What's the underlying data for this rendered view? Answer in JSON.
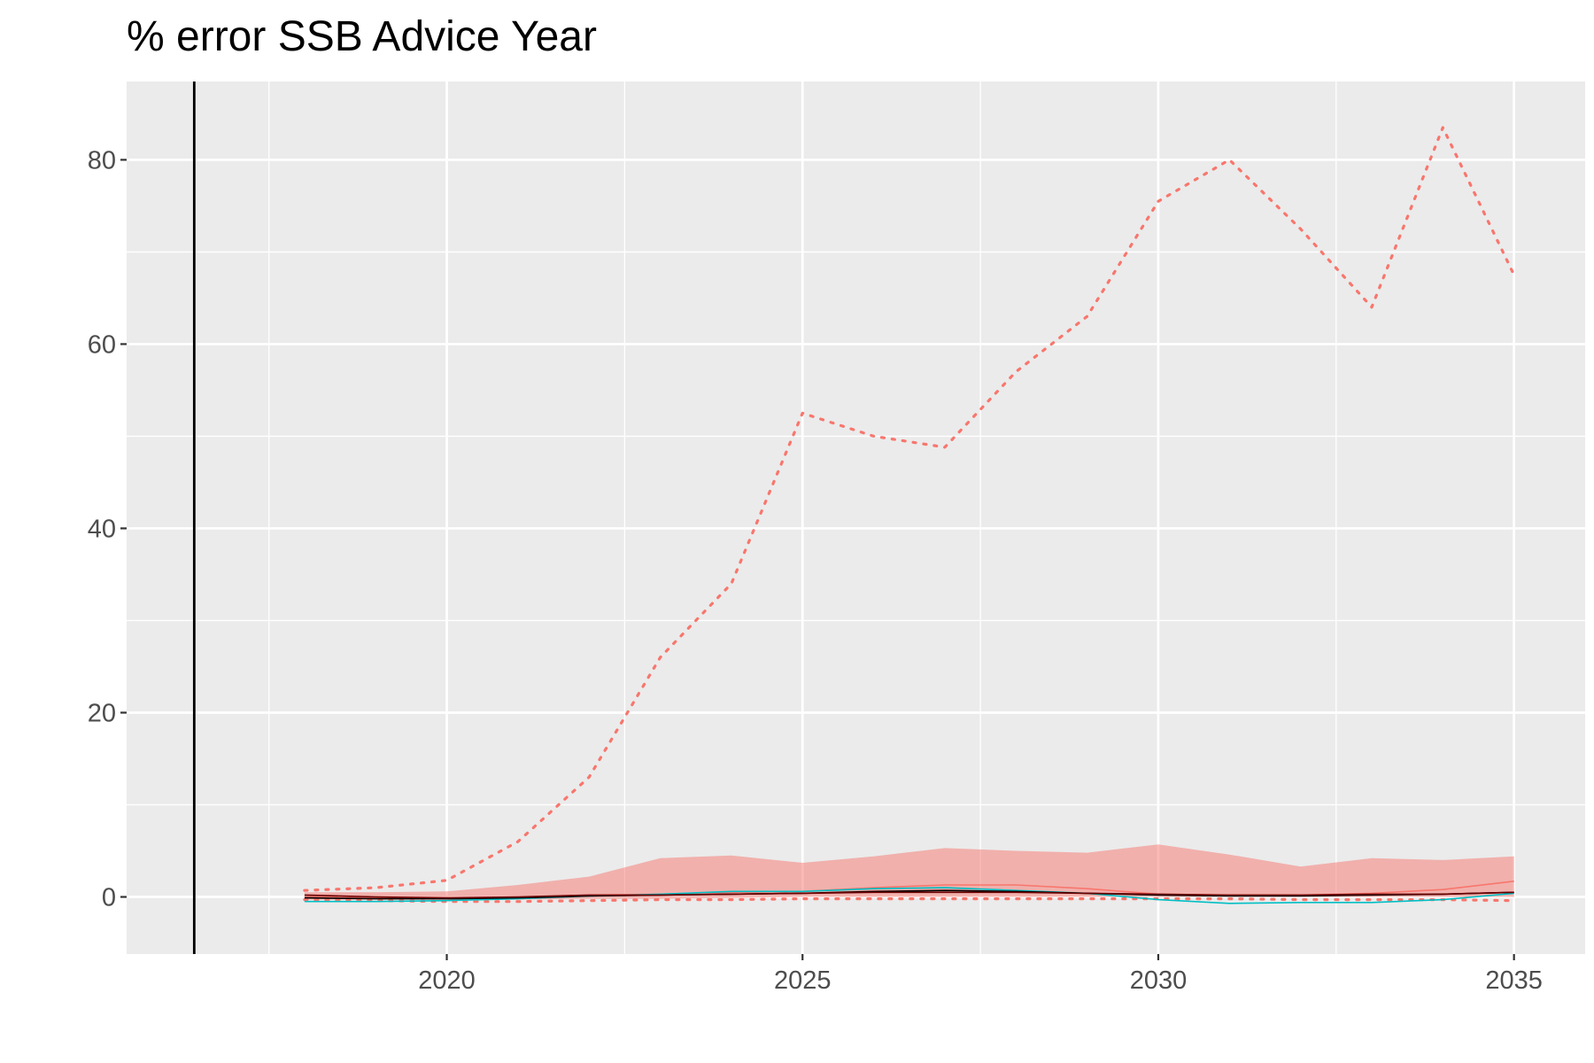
{
  "chart_data": {
    "type": "line",
    "title": "% error SSB Advice Year",
    "xlabel": "",
    "ylabel": "",
    "xlim": [
      2015.5,
      2036.0
    ],
    "ylim": [
      -6.2,
      88.5
    ],
    "x_ticks": [
      2020,
      2025,
      2030,
      2035
    ],
    "x_tick_labels": [
      "2020",
      "2025",
      "2030",
      "2035"
    ],
    "y_ticks": [
      0,
      20,
      40,
      60,
      80
    ],
    "y_tick_labels": [
      "0",
      "20",
      "40",
      "60",
      "80"
    ],
    "background": "#ebebeb",
    "grid": true,
    "legend": "none",
    "vertical_reference_line": {
      "x": 2016.45,
      "color": "#000000"
    },
    "x": [
      2018,
      2019,
      2020,
      2021,
      2022,
      2023,
      2024,
      2025,
      2026,
      2027,
      2028,
      2029,
      2030,
      2031,
      2032,
      2033,
      2034,
      2035
    ],
    "band": {
      "color": "#f8766d",
      "opacity": 0.5,
      "lower": [
        -0.3,
        -0.3,
        -0.3,
        -0.3,
        -0.2,
        -0.2,
        -0.1,
        0.0,
        0.0,
        0.0,
        0.0,
        0.0,
        0.0,
        0.0,
        0.0,
        0.0,
        0.0,
        0.0
      ],
      "upper": [
        0.5,
        0.5,
        0.6,
        1.3,
        2.2,
        4.2,
        4.5,
        3.7,
        4.4,
        5.3,
        5.0,
        4.8,
        5.7,
        4.6,
        3.3,
        4.2,
        4.0,
        4.4
      ]
    },
    "series": [
      {
        "color": "#f8766d",
        "style": "dotted",
        "values": [
          0.7,
          1.0,
          1.8,
          6.0,
          13.0,
          26.0,
          34.0,
          52.5,
          50.0,
          48.8,
          57.0,
          63.0,
          75.5,
          80.0,
          72.5,
          64.0,
          83.5,
          67.5
        ]
      },
      {
        "color": "#f8766d",
        "style": "dotted",
        "values": [
          -0.3,
          -0.4,
          -0.5,
          -0.5,
          -0.4,
          -0.3,
          -0.3,
          -0.2,
          -0.2,
          -0.2,
          -0.2,
          -0.2,
          -0.2,
          -0.2,
          -0.3,
          -0.3,
          -0.3,
          -0.4
        ]
      },
      {
        "color": "#f8766d",
        "style": "solid",
        "values": [
          0.0,
          -0.1,
          -0.2,
          -0.1,
          0.2,
          0.3,
          0.5,
          0.6,
          1.0,
          1.3,
          1.3,
          0.9,
          0.3,
          0.2,
          0.2,
          0.4,
          0.8,
          1.7
        ]
      },
      {
        "color": "#00bfc4",
        "style": "solid",
        "values": [
          -0.5,
          -0.5,
          -0.4,
          -0.2,
          0.1,
          0.3,
          0.6,
          0.6,
          0.9,
          1.0,
          0.7,
          0.4,
          -0.3,
          -0.7,
          -0.6,
          -0.6,
          -0.3,
          0.4
        ]
      },
      {
        "color": "#000000",
        "style": "solid",
        "values": [
          -0.1,
          -0.2,
          -0.2,
          -0.1,
          0.1,
          0.2,
          0.3,
          0.4,
          0.6,
          0.7,
          0.6,
          0.4,
          0.2,
          0.1,
          0.1,
          0.2,
          0.3,
          0.5
        ]
      },
      {
        "color": "#6b0000",
        "style": "solid",
        "values": [
          0.2,
          0.0,
          -0.1,
          0.0,
          0.2,
          0.2,
          0.3,
          0.4,
          0.5,
          0.5,
          0.5,
          0.4,
          0.3,
          0.2,
          0.2,
          0.3,
          0.3,
          0.5
        ]
      }
    ]
  }
}
